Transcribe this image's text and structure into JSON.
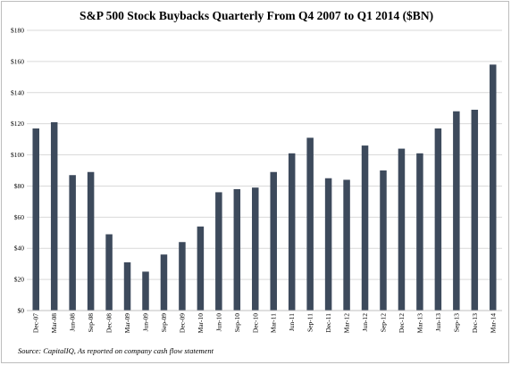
{
  "chart_data": {
    "type": "bar",
    "title": "S&P 500 Stock Buybacks Quarterly From Q4 2007 to Q1 2014 ($BN)",
    "source": "Source: CapitalIQ, As reported on company cash flow statement",
    "xlabel": "",
    "ylabel": "",
    "ylim": [
      0,
      180
    ],
    "yticks": [
      "$0",
      "$20",
      "$40",
      "$60",
      "$80",
      "$100",
      "$120",
      "$140",
      "$160",
      "$180"
    ],
    "grid": true,
    "bar_color": "#3d4a5c",
    "grid_color": "#d9d9d9",
    "categories": [
      "Dec-07",
      "Mar-08",
      "Jun-08",
      "Sep-08",
      "Dec-08",
      "Mar-09",
      "Jun-09",
      "Sep-09",
      "Dec-09",
      "Mar-10",
      "Jun-10",
      "Sep-10",
      "Dec-10",
      "Mar-11",
      "Jun-11",
      "Sep-11",
      "Dec-11",
      "Mar-12",
      "Jun-12",
      "Sep-12",
      "Dec-12",
      "Mar-13",
      "Jun-13",
      "Sep-13",
      "Dec-13",
      "Mar-14"
    ],
    "values": [
      117,
      121,
      87,
      89,
      49,
      31,
      25,
      36,
      44,
      54,
      76,
      78,
      79,
      89,
      101,
      111,
      85,
      84,
      106,
      90,
      104,
      101,
      117,
      128,
      129,
      158
    ]
  }
}
